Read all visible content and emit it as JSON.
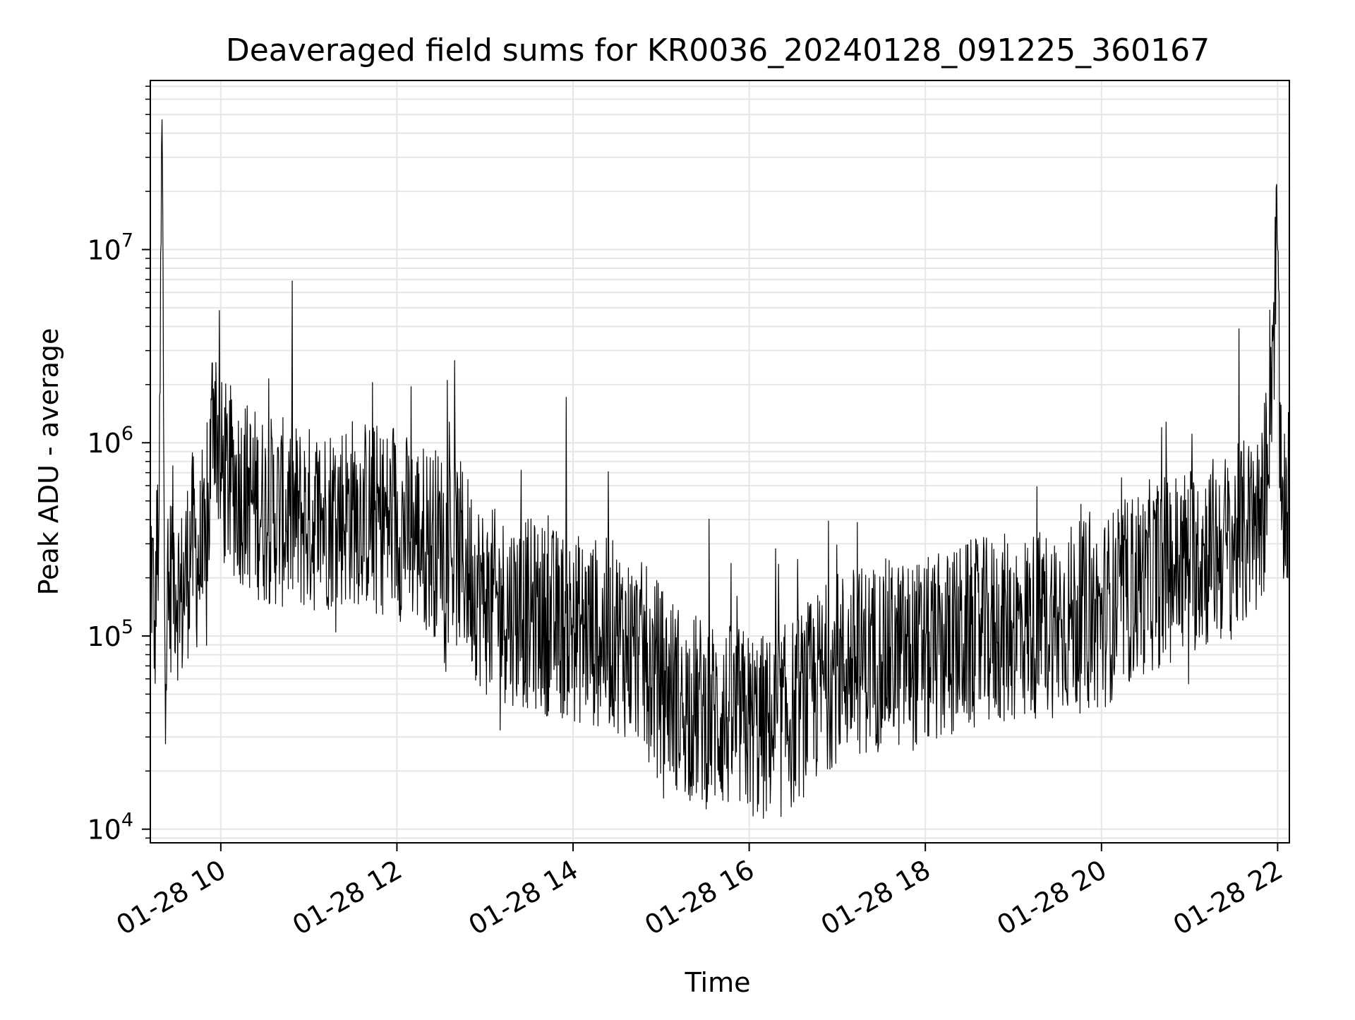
{
  "chart_data": {
    "type": "line",
    "title": "Deaveraged field sums for KR0036_20240128_091225_360167",
    "xlabel": "Time",
    "ylabel": "Peak ADU - average",
    "yscale": "log",
    "xlim": [
      "01-28 09:12",
      "01-28 22:08"
    ],
    "ylim": [
      8500,
      75000000
    ],
    "grid": true,
    "x_ticks": [
      "01-28 10",
      "01-28 12",
      "01-28 14",
      "01-28 16",
      "01-28 18",
      "01-28 20",
      "01-28 22"
    ],
    "y_ticks": [
      {
        "base": "10",
        "exp": "4",
        "value": 10000
      },
      {
        "base": "10",
        "exp": "5",
        "value": 100000
      },
      {
        "base": "10",
        "exp": "6",
        "value": 1000000
      },
      {
        "base": "10",
        "exp": "7",
        "value": 10000000
      }
    ],
    "line_color": "#000000",
    "series": [
      {
        "values": [
          [
            "01-28 09:12",
            300000
          ],
          [
            "01-28 09:15",
            120000
          ],
          [
            "01-28 09:18",
            450000
          ],
          [
            "01-28 09:20",
            47000000
          ],
          [
            "01-28 09:22",
            80000
          ],
          [
            "01-28 09:27",
            250000
          ],
          [
            "01-28 09:33",
            150000
          ],
          [
            "01-28 09:40",
            300000
          ],
          [
            "01-28 09:50",
            200000
          ],
          [
            "01-28 09:55",
            1900000
          ],
          [
            "01-28 10:00",
            700000
          ],
          [
            "01-28 10:30",
            450000
          ],
          [
            "01-28 11:00",
            400000
          ],
          [
            "01-28 11:30",
            450000
          ],
          [
            "01-28 12:00",
            380000
          ],
          [
            "01-28 12:30",
            300000
          ],
          [
            "01-28 12:45",
            250000
          ],
          [
            "01-28 13:00",
            150000
          ],
          [
            "01-28 13:30",
            130000
          ],
          [
            "01-28 14:00",
            110000
          ],
          [
            "01-28 14:30",
            100000
          ],
          [
            "01-28 14:45",
            80000
          ],
          [
            "01-28 15:00",
            60000
          ],
          [
            "01-28 15:15",
            45000
          ],
          [
            "01-28 15:30",
            40000
          ],
          [
            "01-28 16:00",
            35000
          ],
          [
            "01-28 16:15",
            32000
          ],
          [
            "01-28 16:30",
            40000
          ],
          [
            "01-28 17:00",
            70000
          ],
          [
            "01-28 17:30",
            80000
          ],
          [
            "01-28 18:00",
            80000
          ],
          [
            "01-28 18:30",
            100000
          ],
          [
            "01-28 19:00",
            110000
          ],
          [
            "01-28 19:30",
            120000
          ],
          [
            "01-28 20:00",
            130000
          ],
          [
            "01-28 20:30",
            200000
          ],
          [
            "01-28 21:00",
            250000
          ],
          [
            "01-28 21:30",
            300000
          ],
          [
            "01-28 21:50",
            400000
          ],
          [
            "01-28 22:00",
            10000000
          ],
          [
            "01-28 22:02",
            500000
          ],
          [
            "01-28 22:08",
            500000
          ]
        ]
      }
    ]
  }
}
